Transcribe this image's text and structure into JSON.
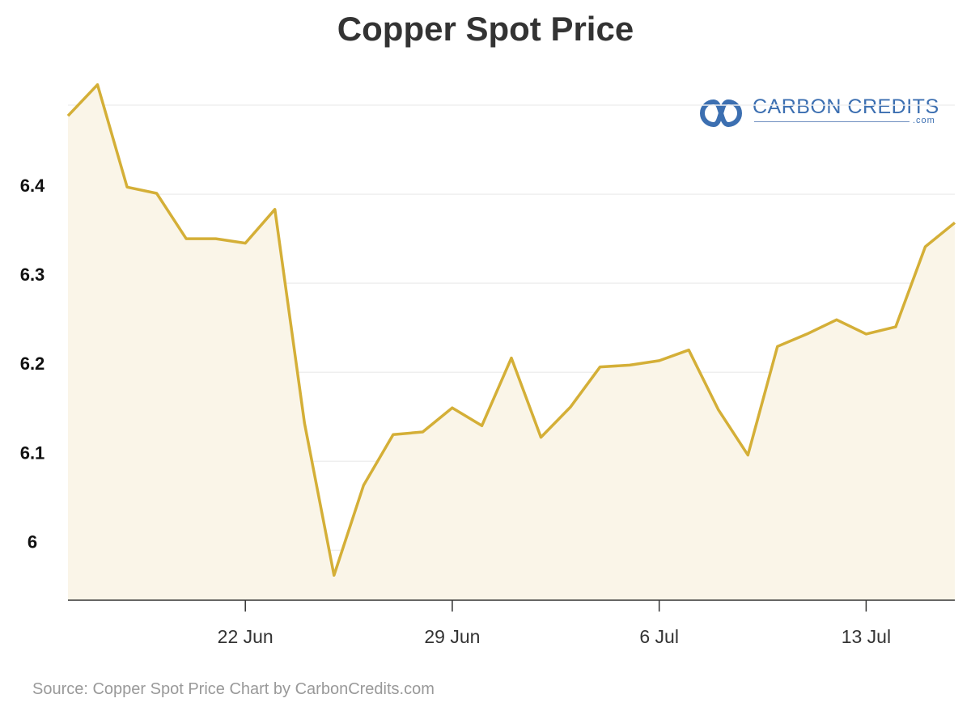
{
  "header": {
    "title": "Copper Spot Price"
  },
  "logo": {
    "text": "CARBON CREDITS",
    "sub": ".com"
  },
  "footer": {
    "source": "Source: Copper Spot Price Chart by CarbonCredits.com"
  },
  "colors": {
    "line": "#d4af37",
    "fill": "#faf5e8",
    "grid": "#efefef",
    "axis": "#333333",
    "logo": "#3c6fb1"
  },
  "chart_data": {
    "type": "area",
    "title": "Copper Spot Price",
    "xlabel": "",
    "ylabel": "",
    "x_ticks": [
      "22 Jun",
      "29 Jun",
      "6 Jul",
      "13 Jul"
    ],
    "y_ticks": [
      "6",
      "6.1",
      "6.2",
      "6.3",
      "6.4"
    ],
    "ylim": [
      5.944,
      6.5
    ],
    "grid": true,
    "legend": "none",
    "x": [
      "2023-06-16",
      "2023-06-17",
      "2023-06-18",
      "2023-06-19",
      "2023-06-20",
      "2023-06-21",
      "2023-06-22",
      "2023-06-23",
      "2023-06-24",
      "2023-06-25",
      "2023-06-26",
      "2023-06-27",
      "2023-06-28",
      "2023-06-29",
      "2023-06-30",
      "2023-07-01",
      "2023-07-02",
      "2023-07-03",
      "2023-07-04",
      "2023-07-05",
      "2023-07-06",
      "2023-07-07",
      "2023-07-08",
      "2023-07-09",
      "2023-07-10",
      "2023-07-11",
      "2023-07-12",
      "2023-07-13",
      "2023-07-14",
      "2023-07-15",
      "2023-07-16"
    ],
    "series": [
      {
        "values": [
          6.488,
          6.523,
          6.408,
          6.401,
          6.35,
          6.35,
          6.345,
          6.383,
          6.143,
          5.972,
          6.073,
          6.13,
          6.133,
          6.16,
          6.14,
          6.216,
          6.127,
          6.161,
          6.206,
          6.208,
          6.213,
          6.225,
          6.158,
          6.107,
          6.229,
          6.243,
          6.259,
          6.243,
          6.251,
          6.341,
          6.368
        ]
      }
    ]
  }
}
